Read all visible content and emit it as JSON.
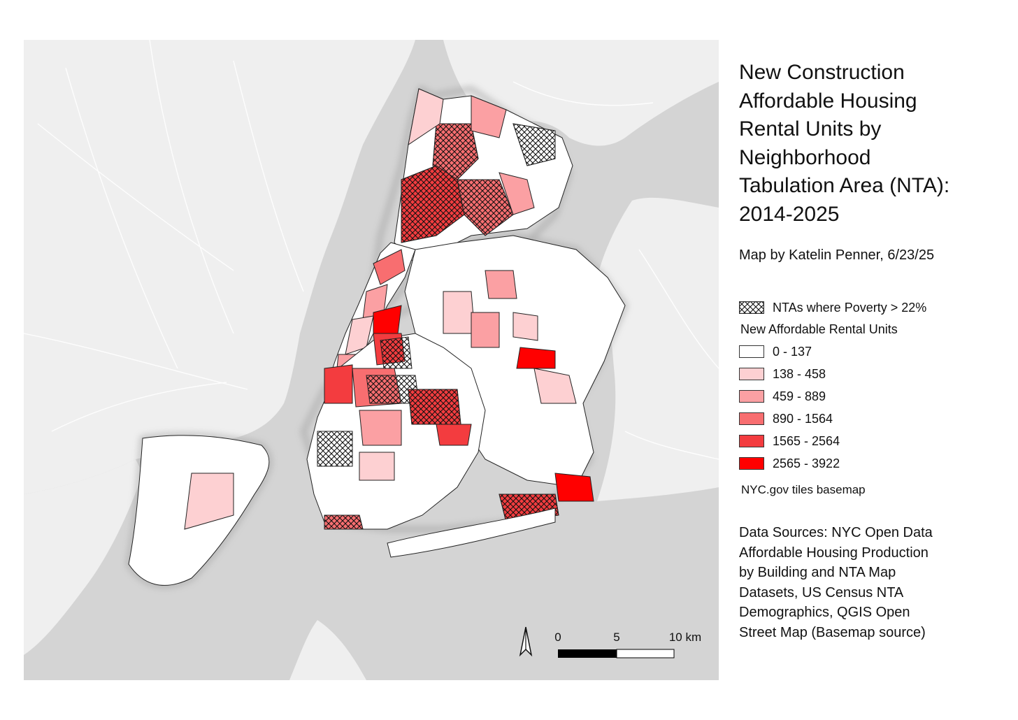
{
  "title": "New Construction Affordable Housing Rental Units by Neighborhood Tabulation Area (NTA): 2014-2025",
  "title_lines": [
    "New Construction",
    "Affordable Housing",
    "Rental Units by",
    "Neighborhood",
    "Tabulation Area (NTA):",
    "2014-2025"
  ],
  "byline": "Map by Katelin Penner, 6/23/25",
  "legend": {
    "hatch_label": "NTAs where Poverty > 22%",
    "heading": "New Affordable Rental Units",
    "classes": [
      {
        "label": "0 - 137",
        "color": "#ffffff"
      },
      {
        "label": "138 - 458",
        "color": "#fdd0d2"
      },
      {
        "label": "459 - 889",
        "color": "#fba0a3"
      },
      {
        "label": "890 - 1564",
        "color": "#f86e70"
      },
      {
        "label": "1565 - 2564",
        "color": "#f33c3f"
      },
      {
        "label": "2565 - 3922",
        "color": "#ff0000"
      }
    ],
    "basemap": "NYC.gov tiles basemap"
  },
  "sources_lines": [
    "Data Sources: NYC Open Data",
    "Affordable Housing Production",
    "by Building and NTA Map",
    "Datasets, US Census NTA",
    "Demographics, QGIS Open",
    "Street Map (Basemap source)"
  ],
  "scale_bar": {
    "labels": [
      "0",
      "5",
      "10 km"
    ]
  },
  "north_arrow": "north-arrow-icon",
  "colors": {
    "water": "#d4d4d4",
    "land": "#efefef",
    "boundary": "#222222"
  }
}
